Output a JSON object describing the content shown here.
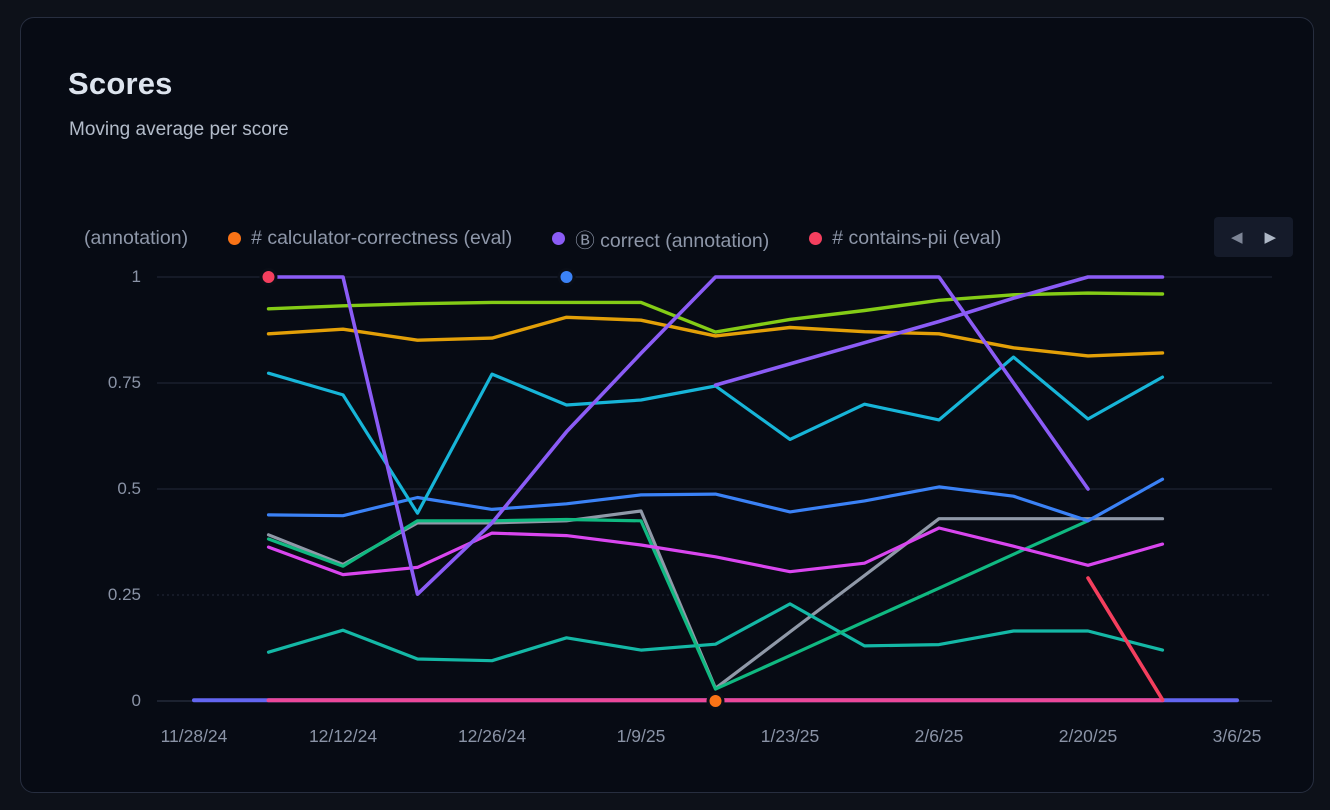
{
  "card": {
    "title": "Scores",
    "subtitle": "Moving average per score"
  },
  "legend": {
    "items": [
      {
        "label": "(annotation)",
        "color": null
      },
      {
        "label": "# calculator-correctness (eval)",
        "color": "#f97316"
      },
      {
        "label": "Ⓑ correct (annotation)",
        "color": "#8b5cf6"
      },
      {
        "label": "# contains-pii (eval)",
        "color": "#f43f5e"
      }
    ],
    "nav": {
      "prev_icon": "◀",
      "next_icon": "▶"
    }
  },
  "chart_data": {
    "type": "line",
    "title": "Scores",
    "subtitle": "Moving average per score",
    "ylim": [
      0,
      1
    ],
    "y_ticks": [
      {
        "v": 0,
        "label": "0"
      },
      {
        "v": 0.25,
        "label": "0.25"
      },
      {
        "v": 0.5,
        "label": "0.5"
      },
      {
        "v": 0.75,
        "label": "0.75"
      },
      {
        "v": 1,
        "label": "1"
      }
    ],
    "x_range_days": [
      0,
      98
    ],
    "x_ticks": [
      {
        "day": 0,
        "label": "11/28/24"
      },
      {
        "day": 14,
        "label": "12/12/24"
      },
      {
        "day": 28,
        "label": "12/26/24"
      },
      {
        "day": 42,
        "label": "1/9/25"
      },
      {
        "day": 56,
        "label": "1/23/25"
      },
      {
        "day": 70,
        "label": "2/6/25"
      },
      {
        "day": 84,
        "label": "2/20/25"
      },
      {
        "day": 98,
        "label": "3/6/25"
      }
    ],
    "grid": "horizontal",
    "legend_position": "top",
    "series": [
      {
        "name": "zero-baseline-indigo",
        "color": "#6366f1",
        "width": 4,
        "points": [
          [
            0,
            0.002
          ],
          [
            98,
            0.002
          ]
        ]
      },
      {
        "name": "zero-baseline-pink",
        "color": "#ec4899",
        "width": 4,
        "points": [
          [
            7,
            0.002
          ],
          [
            91,
            0.002
          ]
        ]
      },
      {
        "name": "gray-series",
        "color": "#9099a8",
        "width": 3.2,
        "points": [
          [
            7,
            0.392
          ],
          [
            14,
            0.322
          ],
          [
            21,
            0.42
          ],
          [
            28,
            0.42
          ],
          [
            35,
            0.425
          ],
          [
            42,
            0.448
          ],
          [
            49,
            0.03
          ],
          [
            56,
            0.163
          ],
          [
            63,
            0.296
          ],
          [
            70,
            0.43
          ],
          [
            77,
            0.43
          ],
          [
            84,
            0.43
          ],
          [
            91,
            0.43
          ]
        ]
      },
      {
        "name": "teal-series",
        "color": "#14b8a6",
        "width": 3.2,
        "points": [
          [
            7,
            0.115
          ],
          [
            14,
            0.167
          ],
          [
            21,
            0.099
          ],
          [
            28,
            0.095
          ],
          [
            35,
            0.149
          ],
          [
            42,
            0.12
          ],
          [
            49,
            0.134
          ],
          [
            56,
            0.229
          ],
          [
            63,
            0.13
          ],
          [
            70,
            0.133
          ],
          [
            77,
            0.165
          ],
          [
            84,
            0.165
          ],
          [
            91,
            0.12
          ]
        ]
      },
      {
        "name": "emerald-series",
        "color": "#10b981",
        "width": 3.2,
        "points": [
          [
            7,
            0.382
          ],
          [
            14,
            0.318
          ],
          [
            21,
            0.425
          ],
          [
            28,
            0.425
          ],
          [
            35,
            0.428
          ],
          [
            42,
            0.425
          ],
          [
            49,
            0.028
          ],
          [
            56,
            0.107
          ],
          [
            63,
            0.187
          ],
          [
            70,
            0.266
          ],
          [
            77,
            0.346
          ],
          [
            84,
            0.425
          ]
        ]
      },
      {
        "name": "fuchsia-series",
        "color": "#d946ef",
        "width": 3.2,
        "points": [
          [
            7,
            0.363
          ],
          [
            14,
            0.298
          ],
          [
            21,
            0.315
          ],
          [
            28,
            0.396
          ],
          [
            35,
            0.39
          ],
          [
            42,
            0.368
          ],
          [
            49,
            0.34
          ],
          [
            56,
            0.305
          ],
          [
            63,
            0.325
          ],
          [
            70,
            0.408
          ],
          [
            77,
            0.365
          ],
          [
            84,
            0.32
          ],
          [
            91,
            0.37
          ]
        ]
      },
      {
        "name": "blue-series",
        "color": "#3b82f6",
        "width": 3.2,
        "points": [
          [
            7,
            0.439
          ],
          [
            14,
            0.437
          ],
          [
            21,
            0.48
          ],
          [
            28,
            0.452
          ],
          [
            35,
            0.465
          ],
          [
            42,
            0.486
          ],
          [
            49,
            0.488
          ],
          [
            56,
            0.446
          ],
          [
            63,
            0.472
          ],
          [
            70,
            0.505
          ],
          [
            77,
            0.483
          ],
          [
            84,
            0.425
          ],
          [
            91,
            0.523
          ]
        ]
      },
      {
        "name": "cyan-series",
        "color": "#17b5d8",
        "width": 3.2,
        "points": [
          [
            7,
            0.773
          ],
          [
            14,
            0.722
          ],
          [
            21,
            0.443
          ],
          [
            28,
            0.771
          ],
          [
            35,
            0.698
          ],
          [
            42,
            0.71
          ],
          [
            49,
            0.743
          ],
          [
            56,
            0.617
          ],
          [
            63,
            0.7
          ],
          [
            70,
            0.663
          ],
          [
            77,
            0.811
          ],
          [
            84,
            0.665
          ],
          [
            91,
            0.764
          ]
        ]
      },
      {
        "name": "gold-series",
        "color": "#e3a008",
        "width": 3.4,
        "points": [
          [
            7,
            0.866
          ],
          [
            14,
            0.877
          ],
          [
            21,
            0.851
          ],
          [
            28,
            0.856
          ],
          [
            35,
            0.905
          ],
          [
            42,
            0.898
          ],
          [
            49,
            0.861
          ],
          [
            56,
            0.881
          ],
          [
            63,
            0.871
          ],
          [
            70,
            0.866
          ],
          [
            77,
            0.833
          ],
          [
            84,
            0.814
          ],
          [
            91,
            0.821
          ]
        ]
      },
      {
        "name": "lime-series",
        "color": "#84cc16",
        "width": 3.4,
        "points": [
          [
            7,
            0.925
          ],
          [
            14,
            0.932
          ],
          [
            21,
            0.937
          ],
          [
            28,
            0.94
          ],
          [
            35,
            0.94
          ],
          [
            42,
            0.94
          ],
          [
            49,
            0.87
          ],
          [
            56,
            0.9
          ],
          [
            63,
            0.921
          ],
          [
            70,
            0.945
          ],
          [
            77,
            0.958
          ],
          [
            84,
            0.962
          ],
          [
            91,
            0.96
          ]
        ]
      },
      {
        "name": "violet-series-a",
        "color": "#8b5cf6",
        "width": 3.6,
        "points": [
          [
            7,
            1
          ],
          [
            14,
            1
          ],
          [
            21,
            0.252
          ],
          [
            28,
            0.42
          ],
          [
            35,
            0.635
          ],
          [
            42,
            0.82
          ],
          [
            49,
            1
          ],
          [
            56,
            1
          ],
          [
            63,
            1
          ],
          [
            70,
            1
          ],
          [
            77,
            0.75
          ],
          [
            84,
            0.5
          ]
        ]
      },
      {
        "name": "violet-series-b",
        "color": "#8b5cf6",
        "width": 3.6,
        "points": [
          [
            49,
            0.745
          ],
          [
            56,
            0.795
          ],
          [
            63,
            0.845
          ],
          [
            70,
            0.895
          ],
          [
            77,
            0.95
          ],
          [
            84,
            1
          ],
          [
            91,
            1
          ]
        ]
      },
      {
        "name": "rose-series",
        "color": "#f43f5e",
        "width": 3.6,
        "points": [
          [
            84,
            0.29
          ],
          [
            91,
            0.003
          ]
        ]
      }
    ],
    "markers": [
      {
        "name": "rose-point",
        "day": 7,
        "value": 1,
        "color": "#f43f5e"
      },
      {
        "name": "blue-point",
        "day": 35,
        "value": 1,
        "color": "#3b82f6"
      },
      {
        "name": "orange-point",
        "day": 49,
        "value": 0,
        "color": "#f97316"
      }
    ]
  }
}
